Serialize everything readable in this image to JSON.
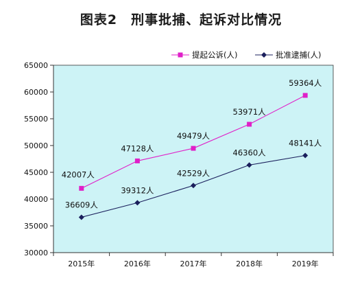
{
  "chart_data": {
    "type": "line",
    "title": "图表2　刑事批捕、起诉对比情况",
    "categories": [
      "2015年",
      "2016年",
      "2017年",
      "2018年",
      "2019年"
    ],
    "ylim": [
      30000,
      65000
    ],
    "yticks": [
      30000,
      35000,
      40000,
      45000,
      50000,
      55000,
      60000,
      65000
    ],
    "legend_position": "top-right",
    "grid": false,
    "series": [
      {
        "name": "提起公诉(人)",
        "color": "#e020c8",
        "marker": "square",
        "values": [
          42007,
          47128,
          49479,
          53971,
          59364
        ],
        "labels": [
          "42007人",
          "47128人",
          "49479人",
          "53971人",
          "59364人"
        ]
      },
      {
        "name": "批准逮捕(人)",
        "color": "#1a1f5c",
        "marker": "diamond",
        "values": [
          36609,
          39312,
          42529,
          46360,
          48141
        ],
        "labels": [
          "36609人",
          "39312人",
          "42529人",
          "46360人",
          "48141人"
        ]
      }
    ],
    "plot_background": "#cdf3f6"
  }
}
